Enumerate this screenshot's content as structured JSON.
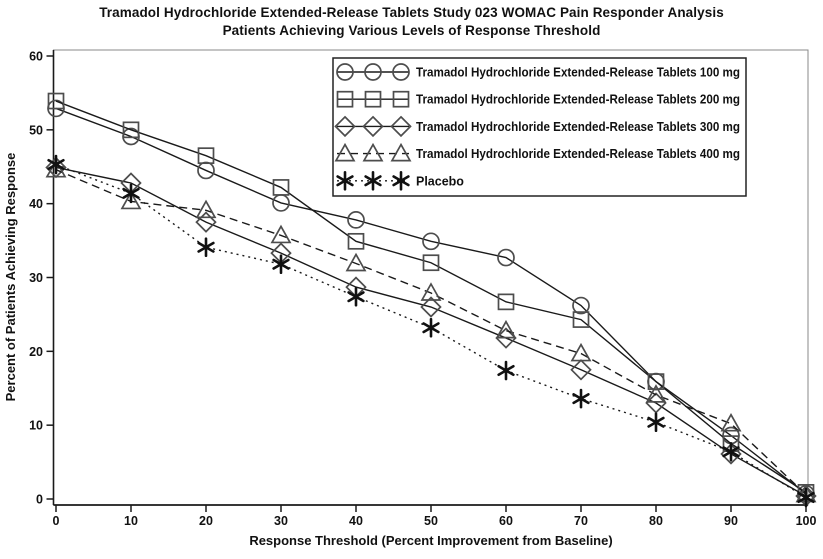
{
  "chart_data": {
    "type": "line",
    "title_line1": "Tramadol Hydrochloride Extended-Release Tablets Study 023 WOMAC Pain Responder Analysis",
    "title_line2": "Patients Achieving Various Levels of Response Threshold",
    "xlabel": "Response Threshold (Percent Improvement from Baseline)",
    "ylabel": "Percent of Patients Achieving Response",
    "x": [
      0,
      10,
      20,
      30,
      40,
      50,
      60,
      70,
      80,
      90,
      100
    ],
    "xlim": [
      0,
      100
    ],
    "ylim": [
      0,
      60
    ],
    "xticks": [
      0,
      10,
      20,
      30,
      40,
      50,
      60,
      70,
      80,
      90,
      100
    ],
    "yticks": [
      0,
      10,
      20,
      30,
      40,
      50,
      60
    ],
    "grid": false,
    "legend_position": "top-right-inside",
    "series": [
      {
        "name": "Tramadol Hydrochloride Extended-Release Tablets 100 mg",
        "id": "tramadol-100mg",
        "marker": "circle",
        "line": "solid",
        "values": [
          52.9,
          49.1,
          44.5,
          40.1,
          37.8,
          34.9,
          32.7,
          26.2,
          15.9,
          8.6,
          0.7
        ]
      },
      {
        "name": "Tramadol Hydrochloride Extended-Release Tablets 200 mg",
        "id": "tramadol-200mg",
        "marker": "square",
        "line": "solid",
        "values": [
          53.9,
          50.0,
          46.5,
          42.2,
          34.9,
          32.0,
          26.7,
          24.3,
          15.9,
          7.5,
          0.9
        ]
      },
      {
        "name": "Tramadol Hydrochloride Extended-Release Tablets 300 mg",
        "id": "tramadol-300mg",
        "marker": "diamond",
        "line": "solid",
        "values": [
          44.9,
          42.8,
          37.5,
          33.3,
          28.7,
          26.0,
          21.8,
          17.5,
          13.0,
          6.1,
          0.4
        ]
      },
      {
        "name": "Tramadol Hydrochloride Extended-Release Tablets 400 mg",
        "id": "tramadol-400mg",
        "marker": "triangle",
        "line": "dashed",
        "values": [
          44.6,
          40.3,
          39.1,
          35.7,
          31.9,
          27.9,
          22.8,
          19.7,
          14.1,
          10.2,
          0.6
        ]
      },
      {
        "name": "Placebo",
        "id": "placebo",
        "marker": "star",
        "line": "dotted",
        "values": [
          45.3,
          41.4,
          34.1,
          31.8,
          27.4,
          23.2,
          17.4,
          13.6,
          10.4,
          6.4,
          0.2
        ]
      }
    ],
    "styles": {
      "line_color": "#1a1a1a",
      "marker_color": "#4d4d4d",
      "star_color": "#111111",
      "frame_color": "#888888",
      "axis_color": "#1a1a1a",
      "text_color": "#111111",
      "background": "#ffffff"
    }
  }
}
